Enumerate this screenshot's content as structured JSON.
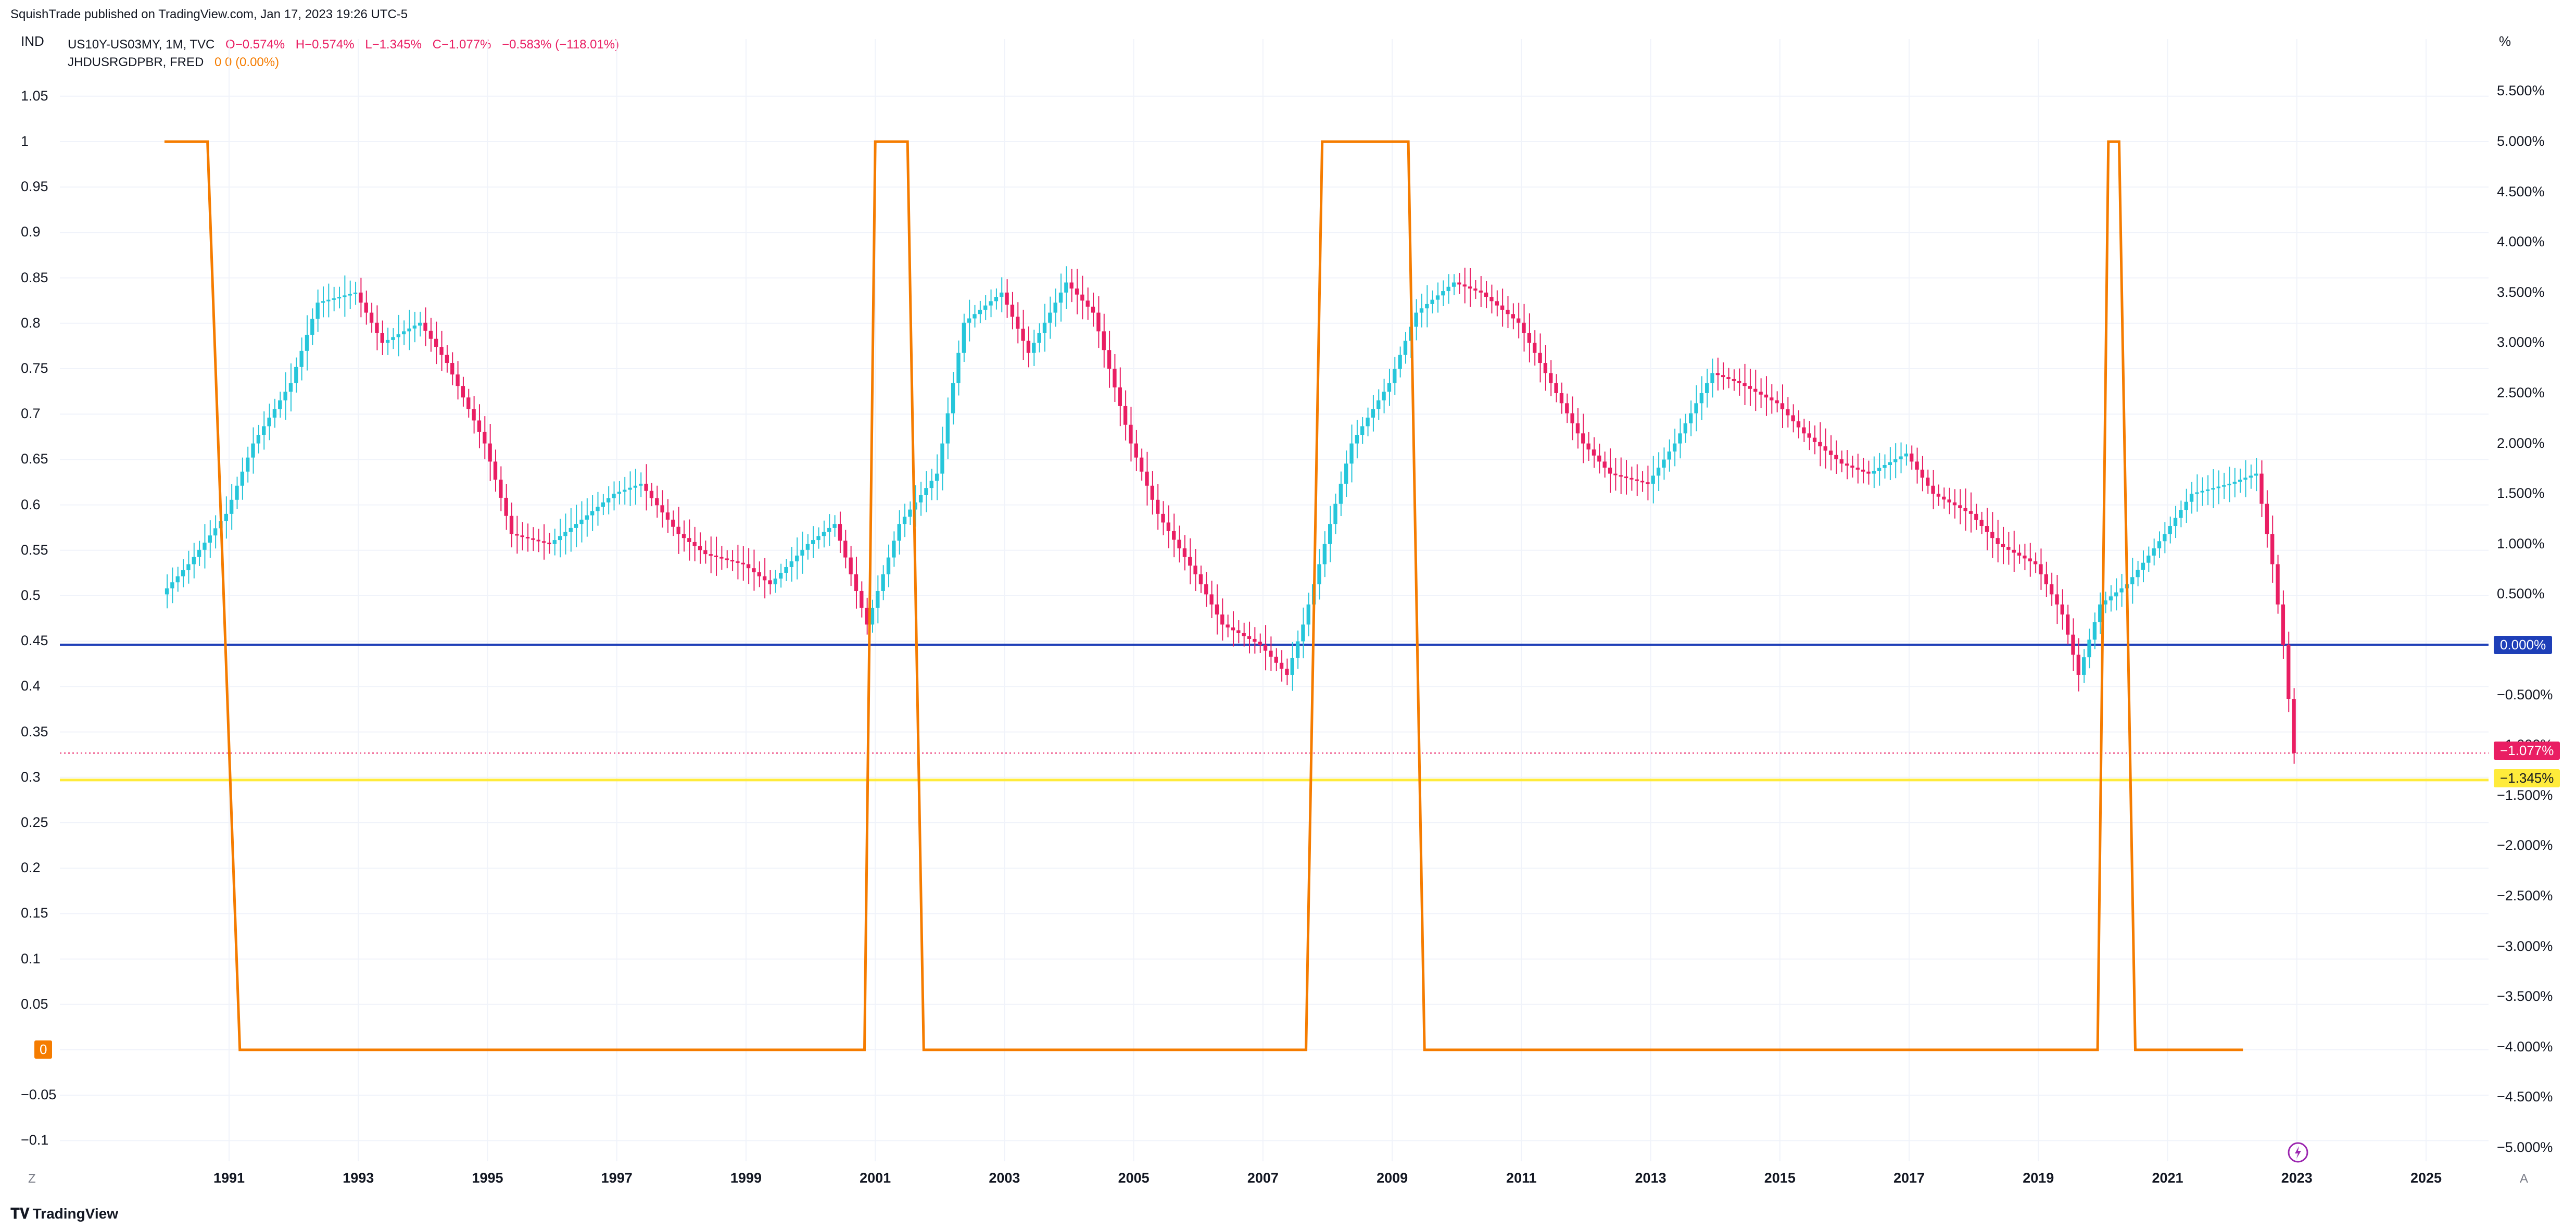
{
  "header": {
    "published": "SquishTrade published on TradingView.com, Jan 17, 2023 19:26 UTC-5"
  },
  "legend": {
    "symbol": "US10Y-US03MY, 1M, TVC",
    "o": "O−0.574%",
    "h": "H−0.574%",
    "l": "L−1.345%",
    "c": "C−1.077%",
    "chg": "−0.583% (−118.01%)",
    "series2": "JHDUSRGDPBR, FRED",
    "series2_vals": "0  0 (0.00%)"
  },
  "left_axis_label": "IND",
  "right_axis_label": "%",
  "left_ticks": [
    "1.05",
    "1",
    "0.95",
    "0.9",
    "0.85",
    "0.8",
    "0.75",
    "0.7",
    "0.65",
    "0.6",
    "0.55",
    "0.5",
    "0.45",
    "0.4",
    "0.35",
    "0.3",
    "0.25",
    "0.2",
    "0.15",
    "0.1",
    "0.05",
    "0",
    "−0.05",
    "−0.1"
  ],
  "right_ticks": [
    "5.500%",
    "5.000%",
    "4.500%",
    "4.000%",
    "3.500%",
    "3.000%",
    "2.500%",
    "2.000%",
    "1.500%",
    "1.000%",
    "0.500%",
    "0.000%",
    "−0.500%",
    "−1.000%",
    "−1.500%",
    "−2.000%",
    "−2.500%",
    "−3.000%",
    "−3.500%",
    "−4.000%",
    "−4.500%",
    "−5.000%"
  ],
  "x_ticks": [
    "1991",
    "1993",
    "1995",
    "1997",
    "1999",
    "2001",
    "2003",
    "2005",
    "2007",
    "2009",
    "2011",
    "2013",
    "2015",
    "2017",
    "2019",
    "2021",
    "2023",
    "2025"
  ],
  "price_labels": {
    "zero": "0.000%",
    "close": "−1.077%",
    "low": "−1.345%",
    "recession_zero": "0"
  },
  "buttons": {
    "left": "Z",
    "right": "A"
  },
  "footer": {
    "brand": "TradingView"
  },
  "colors": {
    "up": "#26c6da",
    "down": "#e91e63",
    "recession": "#f57c00",
    "zero_line": "#1e3fb8",
    "low_line": "#ffeb3b",
    "grid": "#f0f3fa"
  },
  "chart_data": [
    {
      "type": "line",
      "name": "JHDUSRGDPBR, FRED",
      "x": [
        "1990-01",
        "1990-09",
        "1991-03",
        "2000-11",
        "2001-01",
        "2001-07",
        "2001-10",
        "2007-09",
        "2007-12",
        "2009-04",
        "2009-07",
        "2019-12",
        "2020-02",
        "2020-04",
        "2020-07",
        "2022-03"
      ],
      "values": [
        1,
        1,
        0,
        0,
        1,
        1,
        0,
        0,
        1,
        1,
        0,
        0,
        1,
        1,
        0,
        0
      ],
      "ylim": [
        -0.1,
        1.1
      ]
    },
    {
      "type": "line",
      "name": "US10Y-US03MY, 1M, TVC",
      "unit": "%",
      "x": [
        "1990-01",
        "1990-06",
        "1991-01",
        "1991-06",
        "1992-01",
        "1992-06",
        "1993-01",
        "1993-06",
        "1994-01",
        "1994-06",
        "1995-01",
        "1995-06",
        "1996-01",
        "1996-06",
        "1997-01",
        "1997-06",
        "1998-01",
        "1998-06",
        "1999-01",
        "1999-06",
        "2000-01",
        "2000-06",
        "2000-12",
        "2001-06",
        "2002-01",
        "2002-06",
        "2003-01",
        "2003-06",
        "2004-01",
        "2004-06",
        "2005-01",
        "2005-06",
        "2006-01",
        "2006-06",
        "2007-01",
        "2007-06",
        "2007-09",
        "2008-01",
        "2008-06",
        "2009-01",
        "2009-06",
        "2010-01",
        "2010-06",
        "2011-01",
        "2011-06",
        "2012-01",
        "2012-06",
        "2013-01",
        "2013-06",
        "2014-01",
        "2014-06",
        "2015-01",
        "2015-06",
        "2016-01",
        "2016-06",
        "2017-01",
        "2017-06",
        "2018-01",
        "2018-06",
        "2019-01",
        "2019-06",
        "2019-09",
        "2020-01",
        "2020-06",
        "2021-01",
        "2021-06",
        "2022-01",
        "2022-06",
        "2022-09",
        "2022-11",
        "2023-01"
      ],
      "values": [
        0.5,
        0.8,
        1.3,
        2.0,
        2.6,
        3.4,
        3.5,
        3.0,
        3.2,
        2.8,
        2.0,
        1.1,
        1.0,
        1.2,
        1.5,
        1.6,
        1.1,
        0.9,
        0.8,
        0.6,
        1.0,
        1.2,
        0.2,
        1.2,
        1.7,
        3.2,
        3.5,
        2.9,
        3.6,
        3.3,
        2.0,
        1.3,
        0.7,
        0.2,
        0.0,
        -0.3,
        0.2,
        1.0,
        2.0,
        2.6,
        3.3,
        3.6,
        3.5,
        3.2,
        2.7,
        2.0,
        1.7,
        1.6,
        2.0,
        2.7,
        2.6,
        2.4,
        2.1,
        1.8,
        1.7,
        1.9,
        1.5,
        1.3,
        1.0,
        0.8,
        0.3,
        -0.3,
        0.4,
        0.6,
        1.1,
        1.5,
        1.6,
        1.7,
        0.8,
        0.0,
        -1.077
      ],
      "ylim": [
        -5.2,
        5.8
      ]
    }
  ]
}
